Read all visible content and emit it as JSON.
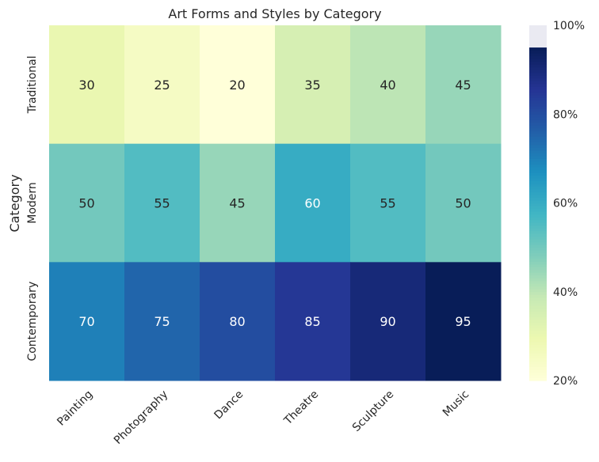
{
  "chart_data": {
    "type": "heatmap",
    "title": "Art Forms and Styles by Category",
    "xlabel": "",
    "ylabel": "Category",
    "x_categories": [
      "Painting",
      "Photography",
      "Dance",
      "Theatre",
      "Sculpture",
      "Music"
    ],
    "y_categories": [
      "Traditional",
      "Modern",
      "Contemporary"
    ],
    "values": [
      [
        30,
        25,
        20,
        35,
        40,
        45
      ],
      [
        50,
        55,
        45,
        60,
        55,
        50
      ],
      [
        70,
        75,
        80,
        85,
        90,
        95
      ]
    ],
    "colormap": "YlGnBu",
    "colorbar": {
      "range": [
        20,
        100
      ],
      "data_max": 95,
      "ticks": [
        "20%",
        "40%",
        "60%",
        "80%",
        "100%"
      ],
      "tick_values": [
        20,
        40,
        60,
        80,
        100
      ]
    }
  }
}
